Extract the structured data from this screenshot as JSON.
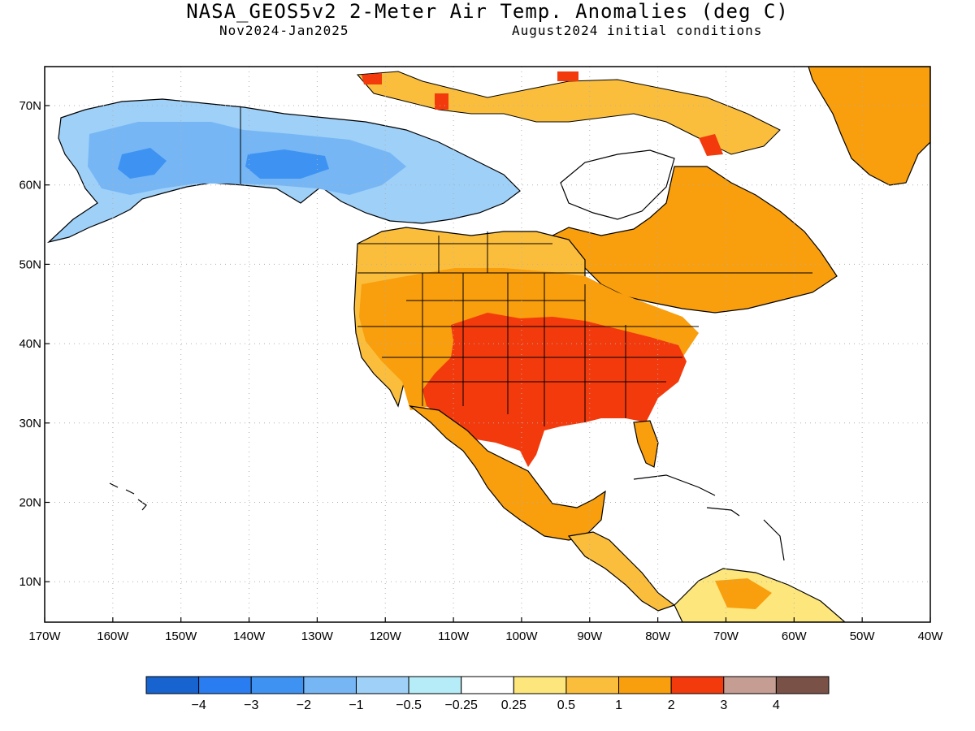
{
  "title": "NASA_GEOS5v2 2-Meter Air Temp. Anomalies (deg C)",
  "subtitle_left": "Nov2024-Jan2025",
  "subtitle_right": "August2024 initial conditions",
  "lat_ticks": [
    "70N",
    "60N",
    "50N",
    "40N",
    "30N",
    "20N",
    "10N"
  ],
  "lon_ticks": [
    "170W",
    "160W",
    "150W",
    "140W",
    "130W",
    "120W",
    "110W",
    "100W",
    "90W",
    "80W",
    "70W",
    "60W",
    "50W",
    "40W"
  ],
  "colorbar": {
    "colors": [
      "#1763cf",
      "#2a7df0",
      "#3e93f2",
      "#76b6f5",
      "#9ed0f8",
      "#b5ecf7",
      "#ffffff",
      "#fde67c",
      "#fbbe3c",
      "#f99e0c",
      "#f23a0c",
      "#c59d92",
      "#7a5147"
    ],
    "labels": [
      "-4",
      "-3",
      "-2",
      "-1",
      "-0.5",
      "-0.25",
      "0.25",
      "0.5",
      "1",
      "2",
      "3",
      "4"
    ]
  },
  "colors": {
    "ocean": "#ffffff",
    "coast": "#000000",
    "grid": "#b0b0b0"
  }
}
